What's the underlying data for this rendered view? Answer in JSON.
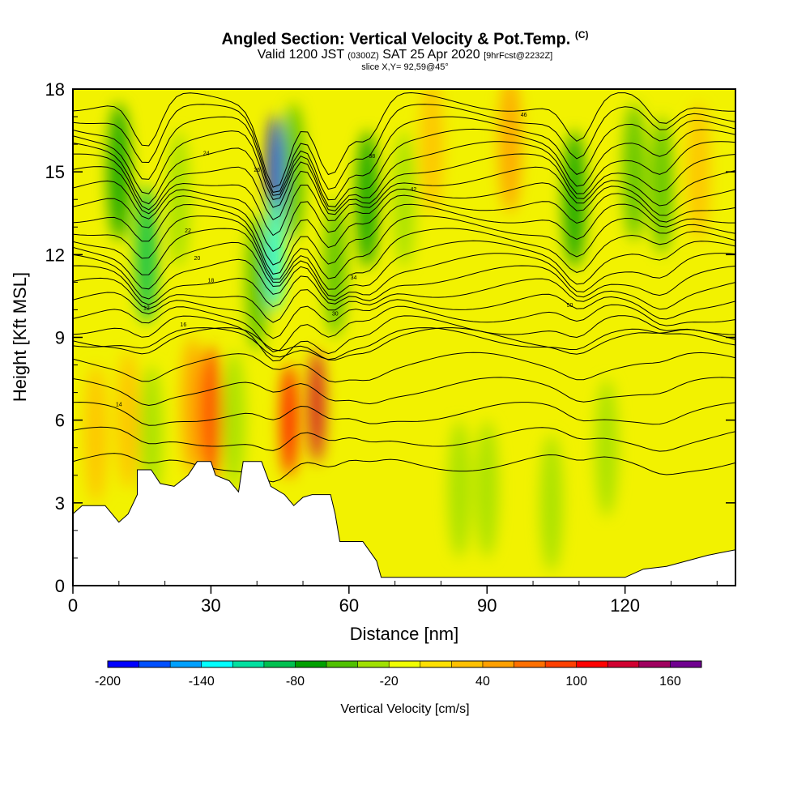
{
  "titles": {
    "main": "Angled Section: Vertical Velocity & Pot.Temp.",
    "main_tag": "(C)",
    "valid_pre": "Valid 1200 JST",
    "valid_z": "(0300Z)",
    "valid_date": "SAT 25 Apr 2020",
    "valid_fcst": "[9hrFcst@2232Z]",
    "slice": "slice X,Y= 92,59@45°"
  },
  "chart_data": {
    "type": "heatmap",
    "title": "Angled Section: Vertical Velocity & Pot.Temp.",
    "xlabel": "Distance [nm]",
    "ylabel": "Height [Kft MSL]",
    "xlim": [
      0,
      144
    ],
    "ylim": [
      0,
      18
    ],
    "x_ticks": [
      "0",
      "30",
      "60",
      "90",
      "120"
    ],
    "x_tick_values": [
      0,
      30,
      60,
      90,
      120
    ],
    "y_ticks": [
      "0",
      "3",
      "6",
      "9",
      "12",
      "15",
      "18"
    ],
    "y_tick_values": [
      0,
      3,
      6,
      9,
      12,
      15,
      18
    ],
    "colorbar": {
      "label": "Vertical Velocity [cm/s]",
      "min": -200,
      "max": 180,
      "step": 20,
      "tick_labels": [
        "-200",
        "-140",
        "-80",
        "-20",
        "40",
        "100",
        "160"
      ],
      "tick_values": [
        -200,
        -140,
        -80,
        -20,
        40,
        100,
        160
      ],
      "colors": [
        "#0000ff",
        "#0050ff",
        "#00a0ff",
        "#00ffff",
        "#00e0a0",
        "#00c050",
        "#00a000",
        "#50c000",
        "#a0e000",
        "#f0ff00",
        "#ffe000",
        "#ffc000",
        "#ffa000",
        "#ff7000",
        "#ff4000",
        "#ff0000",
        "#d00030",
        "#a00060",
        "#700090"
      ]
    },
    "velocity_features": [
      {
        "x": 5,
        "h": 5.5,
        "value": 30
      },
      {
        "x": 12,
        "h": 6,
        "value": 20
      },
      {
        "x": 17,
        "h": 5.5,
        "value": -40
      },
      {
        "x": 10,
        "h": 15,
        "value": -80
      },
      {
        "x": 16,
        "h": 12,
        "value": -90
      },
      {
        "x": 23,
        "h": 14,
        "value": -40
      },
      {
        "x": 26,
        "h": 6.5,
        "value": 40
      },
      {
        "x": 30,
        "h": 6.2,
        "value": 80
      },
      {
        "x": 35,
        "h": 6,
        "value": -30
      },
      {
        "x": 40,
        "h": 11,
        "value": -60
      },
      {
        "x": 44,
        "h": 15,
        "value": -190
      },
      {
        "x": 44,
        "h": 12,
        "value": -140
      },
      {
        "x": 48,
        "h": 15,
        "value": -60
      },
      {
        "x": 47,
        "h": 6,
        "value": 110
      },
      {
        "x": 53,
        "h": 6.5,
        "value": 120
      },
      {
        "x": 57,
        "h": 11.5,
        "value": -60
      },
      {
        "x": 64,
        "h": 14,
        "value": -70
      },
      {
        "x": 72,
        "h": 14,
        "value": -30
      },
      {
        "x": 78,
        "h": 16,
        "value": 30
      },
      {
        "x": 84,
        "h": 3.5,
        "value": -30
      },
      {
        "x": 90,
        "h": 3.5,
        "value": -30
      },
      {
        "x": 95,
        "h": 16,
        "value": 40
      },
      {
        "x": 104,
        "h": 3,
        "value": -40
      },
      {
        "x": 109,
        "h": 14,
        "value": -70
      },
      {
        "x": 116,
        "h": 5,
        "value": -35
      },
      {
        "x": 122,
        "h": 15,
        "value": -50
      },
      {
        "x": 128,
        "h": 14.5,
        "value": -60
      },
      {
        "x": 136,
        "h": 15,
        "value": 30
      }
    ],
    "terrain_kft": [
      [
        0,
        2.6
      ],
      [
        2,
        2.9
      ],
      [
        7,
        2.9
      ],
      [
        10,
        2.3
      ],
      [
        12,
        2.6
      ],
      [
        14,
        3.3
      ],
      [
        14,
        4.2
      ],
      [
        17,
        4.2
      ],
      [
        19,
        3.7
      ],
      [
        22,
        3.6
      ],
      [
        25,
        4.0
      ],
      [
        27,
        4.5
      ],
      [
        30,
        4.5
      ],
      [
        31,
        4.0
      ],
      [
        34,
        3.8
      ],
      [
        36,
        3.4
      ],
      [
        37,
        4.5
      ],
      [
        41,
        4.5
      ],
      [
        43,
        3.6
      ],
      [
        46,
        3.3
      ],
      [
        48,
        2.9
      ],
      [
        50,
        3.2
      ],
      [
        52,
        3.3
      ],
      [
        56,
        3.3
      ],
      [
        57,
        2.6
      ],
      [
        58,
        1.6
      ],
      [
        63,
        1.6
      ],
      [
        66,
        0.9
      ],
      [
        67,
        0.3
      ],
      [
        120,
        0.3
      ],
      [
        124,
        0.6
      ],
      [
        129,
        0.7
      ],
      [
        138,
        1.1
      ],
      [
        144,
        1.3
      ]
    ],
    "isentropes": {
      "count": 26,
      "labels": [
        "14",
        "12",
        "16",
        "18",
        "20",
        "22",
        "24",
        "26",
        "30",
        "34",
        "38",
        "42",
        "46",
        "50"
      ]
    }
  }
}
